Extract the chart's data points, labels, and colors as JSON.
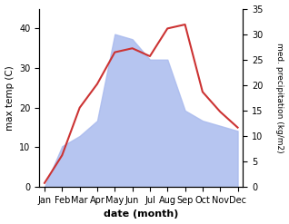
{
  "months": [
    "Jan",
    "Feb",
    "Mar",
    "Apr",
    "May",
    "Jun",
    "Jul",
    "Aug",
    "Sep",
    "Oct",
    "Nov",
    "Dec"
  ],
  "temperature": [
    1,
    8,
    20,
    26,
    34,
    35,
    33,
    40,
    41,
    24,
    19,
    15
  ],
  "precipitation": [
    0,
    8,
    10,
    13,
    30,
    29,
    25,
    25,
    15,
    13,
    12,
    11
  ],
  "temp_color": "#cc3333",
  "precip_color": "#aabbee",
  "xlabel": "date (month)",
  "ylabel_left": "max temp (C)",
  "ylabel_right": "med. precipitation (kg/m2)",
  "ylim_left": [
    0,
    45
  ],
  "ylim_right": [
    0,
    35
  ],
  "yticks_left": [
    0,
    10,
    20,
    30,
    40
  ],
  "yticks_right": [
    0,
    5,
    10,
    15,
    20,
    25,
    30,
    35
  ],
  "background_color": "#ffffff"
}
